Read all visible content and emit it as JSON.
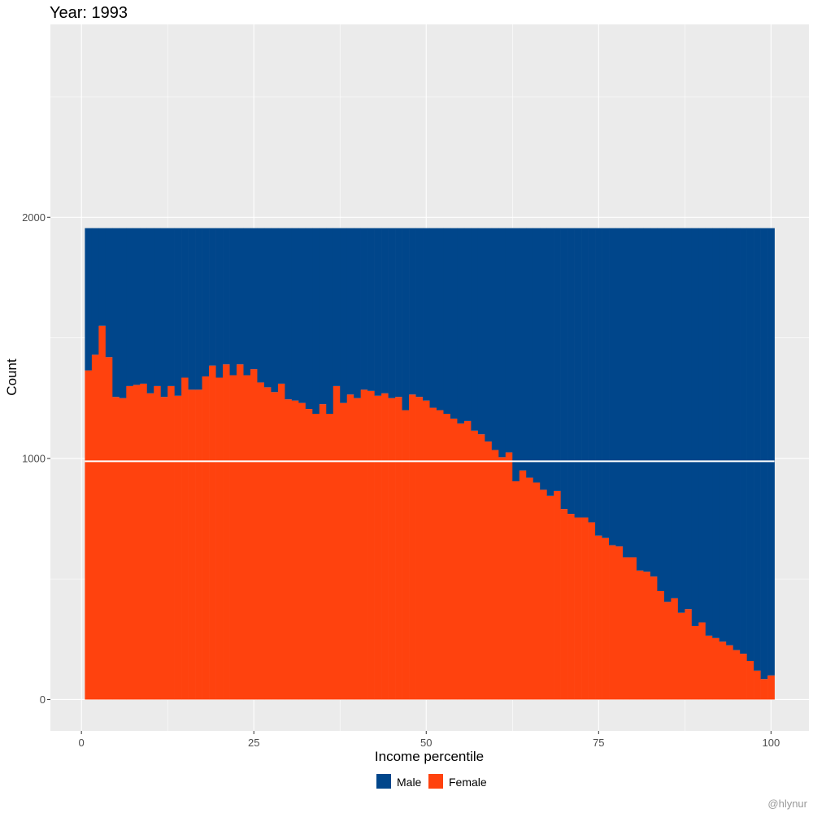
{
  "chart_data": {
    "type": "bar",
    "title": "Year: 1993",
    "xlabel": "Income percentile",
    "ylabel": "Count",
    "xlim": [
      -4.5,
      105.5
    ],
    "ylim": [
      -130,
      2800
    ],
    "x_ticks": [
      0,
      25,
      50,
      75,
      100
    ],
    "x_tick_labels": [
      "0",
      "25",
      "50",
      "75",
      "100"
    ],
    "y_ticks": [
      0,
      1000,
      2000
    ],
    "y_tick_labels": [
      "0",
      "1000",
      "2000"
    ],
    "grid": true,
    "stacked": true,
    "legend": {
      "position": "bottom",
      "entries": [
        "Male",
        "Female"
      ]
    },
    "colors": {
      "male": "#00468b",
      "female": "#ff420e",
      "panel": "#ebebeb",
      "grid": "#ffffff",
      "text": "#4d4d4d",
      "title": "#000000"
    },
    "x": [
      1,
      2,
      3,
      4,
      5,
      6,
      7,
      8,
      9,
      10,
      11,
      12,
      13,
      14,
      15,
      16,
      17,
      18,
      19,
      20,
      21,
      22,
      23,
      24,
      25,
      26,
      27,
      28,
      29,
      30,
      31,
      32,
      33,
      34,
      35,
      36,
      37,
      38,
      39,
      40,
      41,
      42,
      43,
      44,
      45,
      46,
      47,
      48,
      49,
      50,
      51,
      52,
      53,
      54,
      55,
      56,
      57,
      58,
      59,
      60,
      61,
      62,
      63,
      64,
      65,
      66,
      67,
      68,
      69,
      70,
      71,
      72,
      73,
      74,
      75,
      76,
      77,
      78,
      79,
      80,
      81,
      82,
      83,
      84,
      85,
      86,
      87,
      88,
      89,
      90,
      91,
      92,
      93,
      94,
      95,
      96,
      97,
      98,
      99,
      100
    ],
    "series": [
      {
        "name": "Female",
        "values": [
          1365,
          1430,
          1550,
          1420,
          1255,
          1250,
          1300,
          1305,
          1310,
          1270,
          1300,
          1255,
          1300,
          1260,
          1335,
          1285,
          1285,
          1340,
          1385,
          1335,
          1390,
          1345,
          1390,
          1345,
          1370,
          1315,
          1295,
          1275,
          1310,
          1245,
          1240,
          1230,
          1205,
          1185,
          1225,
          1185,
          1300,
          1230,
          1265,
          1250,
          1285,
          1280,
          1260,
          1270,
          1250,
          1255,
          1200,
          1265,
          1255,
          1240,
          1210,
          1200,
          1185,
          1165,
          1145,
          1155,
          1115,
          1100,
          1070,
          1035,
          1005,
          1025,
          905,
          950,
          920,
          900,
          870,
          845,
          865,
          790,
          770,
          755,
          755,
          735,
          680,
          670,
          640,
          635,
          590,
          590,
          535,
          530,
          510,
          450,
          405,
          420,
          360,
          375,
          305,
          320,
          265,
          255,
          240,
          225,
          205,
          190,
          160,
          120,
          85,
          100
        ]
      },
      {
        "name": "Male",
        "values": [
          590,
          525,
          405,
          535,
          700,
          705,
          655,
          650,
          645,
          685,
          655,
          700,
          655,
          695,
          620,
          670,
          670,
          615,
          570,
          620,
          565,
          610,
          565,
          610,
          585,
          640,
          660,
          680,
          645,
          710,
          715,
          725,
          750,
          770,
          730,
          770,
          655,
          725,
          690,
          705,
          670,
          675,
          695,
          685,
          705,
          700,
          755,
          690,
          700,
          715,
          745,
          755,
          770,
          790,
          810,
          800,
          840,
          855,
          885,
          920,
          950,
          930,
          1050,
          1005,
          1035,
          1055,
          1085,
          1110,
          1090,
          1165,
          1185,
          1200,
          1200,
          1220,
          1275,
          1285,
          1315,
          1320,
          1365,
          1365,
          1420,
          1425,
          1445,
          1505,
          1550,
          1535,
          1595,
          1580,
          1650,
          1635,
          1690,
          1700,
          1715,
          1730,
          1750,
          1765,
          1795,
          1835,
          1870,
          1855
        ]
      }
    ],
    "hline": 988,
    "caption": "@hlynur"
  }
}
